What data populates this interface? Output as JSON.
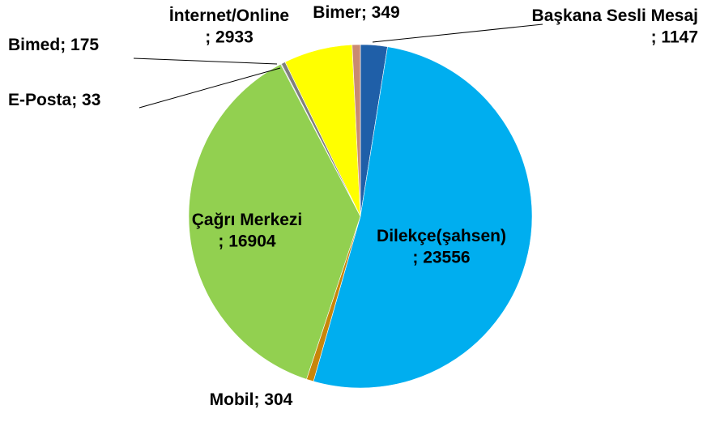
{
  "chart_data": {
    "type": "pie",
    "categories": [
      "Başkana Sesli Mesaj",
      "Dilekçe(şahsen)",
      "Mobil",
      "Çağrı Merkezi",
      "E-Posta",
      "Bimed",
      "İnternet/Online",
      "Bimer"
    ],
    "values": [
      1147,
      23556,
      304,
      16904,
      33,
      175,
      2933,
      349
    ],
    "value_labels": [
      "; 1147",
      "; 23556",
      "; 304",
      "; 16904",
      "; 33",
      "; 175",
      "; 2933",
      "; 349"
    ],
    "colors": [
      "#1f5fa8",
      "#00aeef",
      "#c8860a",
      "#92d050",
      "#a6a6a6",
      "#7f7f7f",
      "#ffff00",
      "#c98a72"
    ]
  }
}
